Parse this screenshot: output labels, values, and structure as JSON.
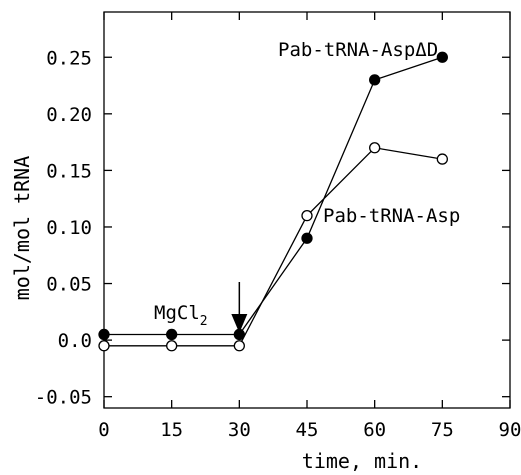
{
  "chart_data": {
    "type": "line",
    "xlabel": "time, min.",
    "ylabel": "mol/mol tRNA",
    "xlim": [
      0,
      90
    ],
    "ylim": [
      -0.06,
      0.29
    ],
    "x_ticks": [
      "0",
      "15",
      "30",
      "45",
      "60",
      "75",
      "90"
    ],
    "y_ticks": [
      "-0.05",
      "0.0",
      "0.05",
      "0.10",
      "0.15",
      "0.20",
      "0.25"
    ],
    "y_tick_values": [
      -0.05,
      0.0,
      0.05,
      0.1,
      0.15,
      0.2,
      0.25
    ],
    "x_tick_values": [
      0,
      15,
      30,
      45,
      60,
      75,
      90
    ],
    "grid": false,
    "series": [
      {
        "name": "Pab-tRNA-AspΔD",
        "marker": "filled-circle",
        "x": [
          0,
          15,
          30,
          45,
          60,
          75
        ],
        "y": [
          0.005,
          0.005,
          0.005,
          0.09,
          0.23,
          0.25
        ]
      },
      {
        "name": "Pab-tRNA-Asp",
        "marker": "open-circle",
        "x": [
          0,
          15,
          30,
          45,
          60,
          75
        ],
        "y": [
          -0.005,
          -0.005,
          -0.005,
          0.11,
          0.17,
          0.16
        ]
      }
    ],
    "annotations": [
      {
        "text": "MgCl",
        "subscript": "2",
        "x": 30,
        "arrow": "down"
      }
    ]
  }
}
